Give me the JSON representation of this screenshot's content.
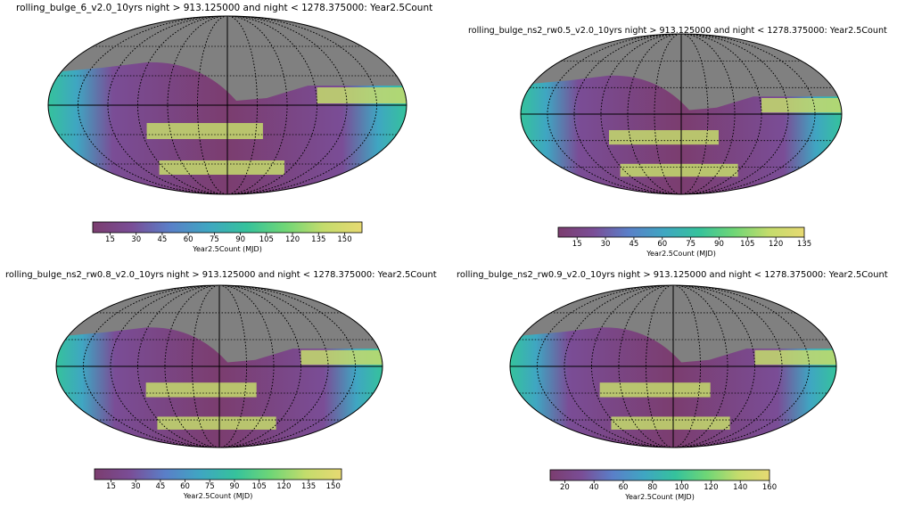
{
  "chart_data": [
    {
      "type": "heatmap",
      "projection": "mollweide",
      "title": "rolling_bulge_6_v2.0_10yrs night > 913.125000 and night < 1278.375000: Year2.5Count",
      "colorbar_label": "Year2.5Count (MJD)",
      "colorbar_ticks": [
        15,
        30,
        45,
        60,
        75,
        90,
        105,
        120,
        135,
        150
      ],
      "colorbar_range": [
        5,
        160
      ],
      "colormap": "viridis (alpha-blended)",
      "grid": true
    },
    {
      "type": "heatmap",
      "projection": "mollweide",
      "title": "rolling_bulge_ns2_rw0.5_v2.0_10yrs night > 913.125000 and night < 1278.375000: Year2.5Count",
      "colorbar_label": "Year2.5Count (MJD)",
      "colorbar_ticks": [
        15,
        30,
        45,
        60,
        75,
        90,
        105,
        120,
        135
      ],
      "colorbar_range": [
        5,
        135
      ],
      "colormap": "viridis (alpha-blended)",
      "grid": true
    },
    {
      "type": "heatmap",
      "projection": "mollweide",
      "title": "rolling_bulge_ns2_rw0.8_v2.0_10yrs night > 913.125000 and night < 1278.375000: Year2.5Count",
      "colorbar_label": "Year2.5Count (MJD)",
      "colorbar_ticks": [
        15,
        30,
        45,
        60,
        75,
        90,
        105,
        120,
        135,
        150
      ],
      "colorbar_range": [
        5,
        155
      ],
      "colormap": "viridis (alpha-blended)",
      "grid": true
    },
    {
      "type": "heatmap",
      "projection": "mollweide",
      "title": "rolling_bulge_ns2_rw0.9_v2.0_10yrs night > 913.125000 and night < 1278.375000: Year2.5Count",
      "colorbar_label": "Year2.5Count (MJD)",
      "colorbar_ticks": [
        20,
        40,
        60,
        80,
        100,
        120,
        140,
        160
      ],
      "colorbar_range": [
        10,
        160
      ],
      "colormap": "viridis (alpha-blended)",
      "grid": true
    }
  ],
  "colors": {
    "no_data": "#808080",
    "cmap_stops": [
      "#7b3d6f",
      "#7a4d96",
      "#5a7fc8",
      "#3fa6c2",
      "#35c29c",
      "#6fd676",
      "#c4dc6c",
      "#e7d972"
    ]
  }
}
